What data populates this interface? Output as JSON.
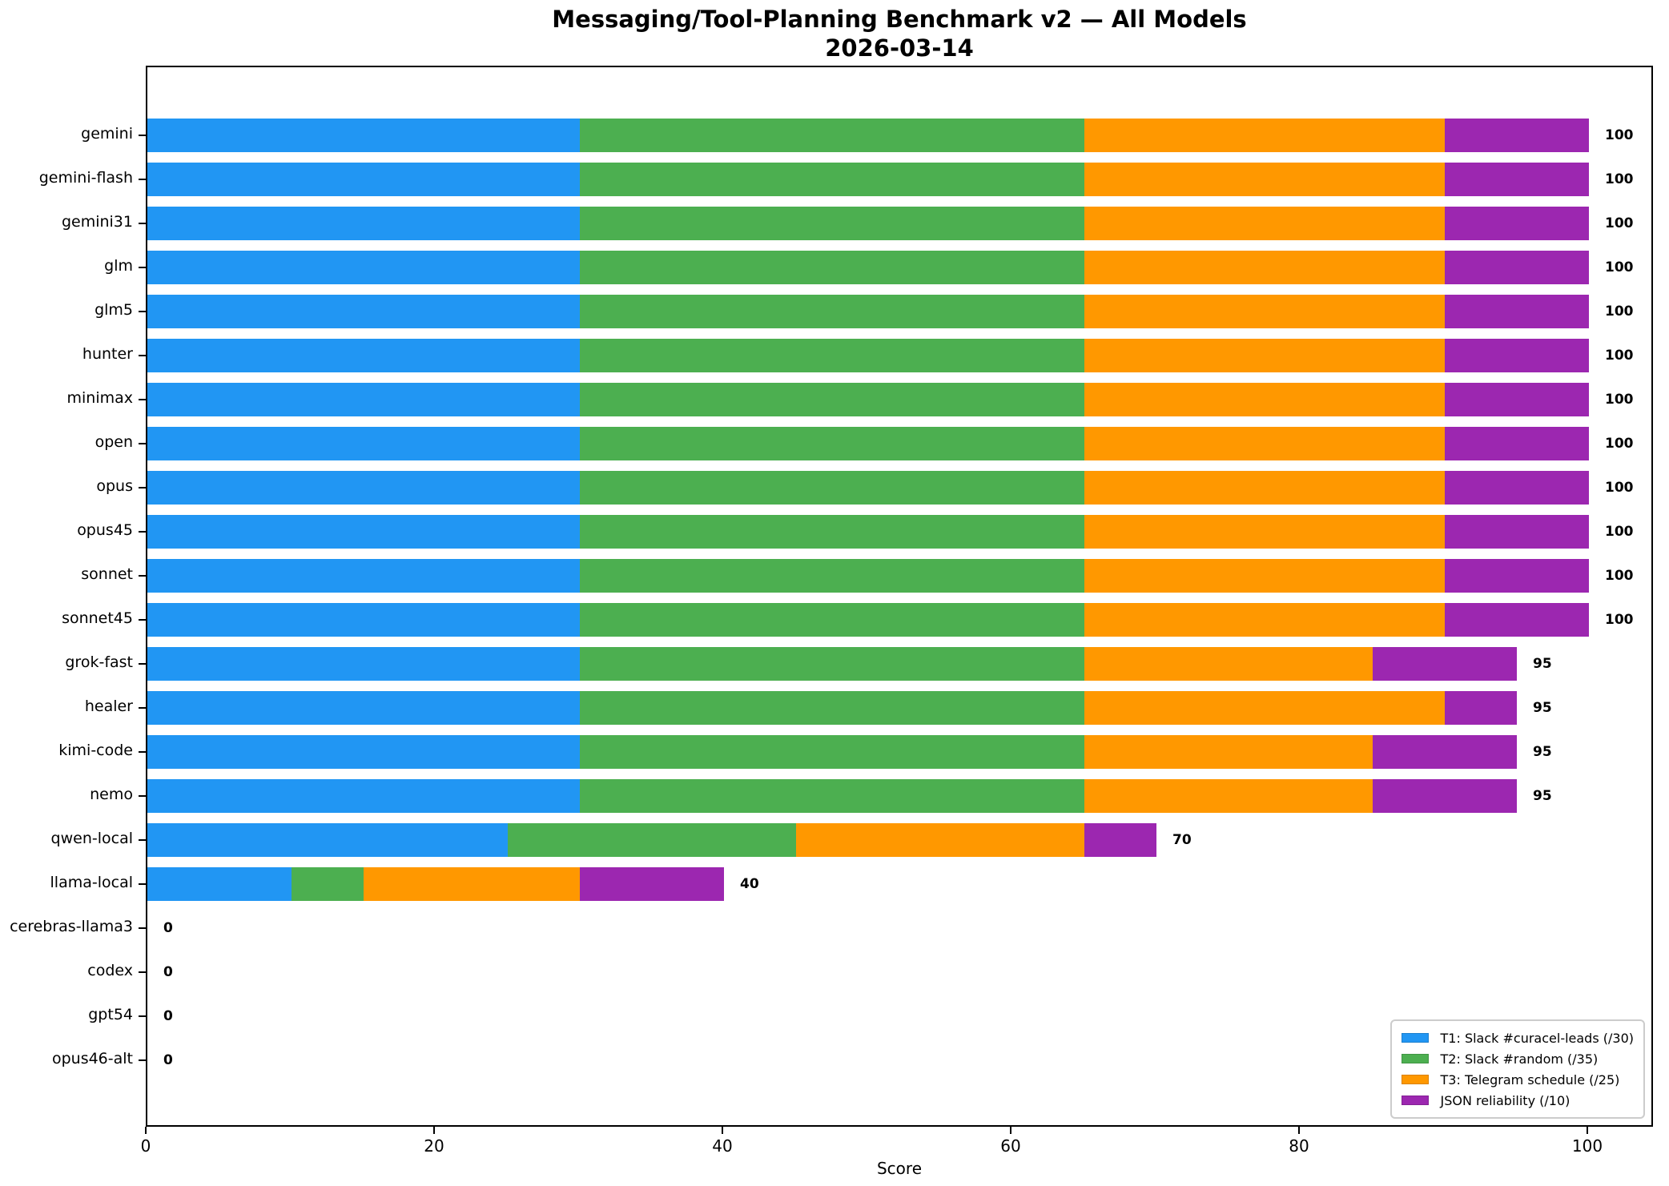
{
  "title": "Messaging/Tool-Planning Benchmark v2 — All Models",
  "subtitle": "2026-03-14",
  "xlabel": "Score",
  "chart_data": {
    "type": "bar",
    "orientation": "horizontal",
    "stacked": true,
    "grid": false,
    "legend_position": "lower right",
    "xlabel": "Score",
    "x_ticks": [
      0,
      20,
      40,
      60,
      80,
      100
    ],
    "xlim": [
      0,
      104.3
    ],
    "categories": [
      "gemini",
      "gemini-flash",
      "gemini31",
      "glm",
      "glm5",
      "hunter",
      "minimax",
      "open",
      "opus",
      "opus45",
      "sonnet",
      "sonnet45",
      "grok-fast",
      "healer",
      "kimi-code",
      "nemo",
      "qwen-local",
      "llama-local",
      "cerebras-llama3",
      "codex",
      "gpt54",
      "opus46-alt"
    ],
    "series": [
      {
        "name": "T1: Slack #curacel-leads (/30)",
        "color": "#2196F3",
        "values": [
          30,
          30,
          30,
          30,
          30,
          30,
          30,
          30,
          30,
          30,
          30,
          30,
          30,
          30,
          30,
          30,
          25,
          10,
          0,
          0,
          0,
          0
        ]
      },
      {
        "name": "T2: Slack #random (/35)",
        "color": "#4CAF50",
        "values": [
          35,
          35,
          35,
          35,
          35,
          35,
          35,
          35,
          35,
          35,
          35,
          35,
          35,
          35,
          35,
          35,
          20,
          5,
          0,
          0,
          0,
          0
        ]
      },
      {
        "name": "T3: Telegram schedule (/25)",
        "color": "#FF9800",
        "values": [
          25,
          25,
          25,
          25,
          25,
          25,
          25,
          25,
          25,
          25,
          25,
          25,
          20,
          25,
          20,
          20,
          20,
          15,
          0,
          0,
          0,
          0
        ]
      },
      {
        "name": "JSON reliability (/10)",
        "color": "#9C27B0",
        "values": [
          10,
          10,
          10,
          10,
          10,
          10,
          10,
          10,
          10,
          10,
          10,
          10,
          10,
          5,
          10,
          10,
          5,
          10,
          0,
          0,
          0,
          0
        ]
      }
    ],
    "totals": [
      100,
      100,
      100,
      100,
      100,
      100,
      100,
      100,
      100,
      100,
      100,
      100,
      95,
      95,
      95,
      95,
      70,
      40,
      0,
      0,
      0,
      0
    ]
  },
  "axis_color": "#000000",
  "background_color": "#ffffff"
}
